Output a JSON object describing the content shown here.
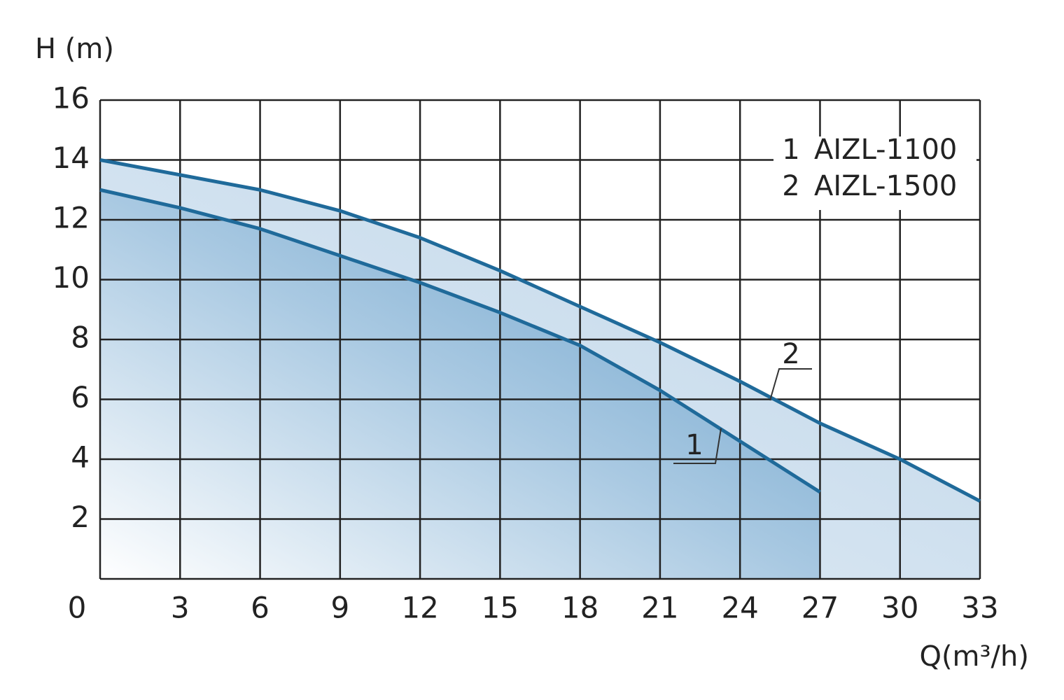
{
  "chart_data": {
    "type": "line",
    "y_label": "H (m)",
    "x_label": "Q(m³/h)",
    "xlim": [
      0,
      33
    ],
    "ylim": [
      0,
      16
    ],
    "xticks": [
      0,
      3,
      6,
      9,
      12,
      15,
      18,
      21,
      24,
      27,
      30,
      33
    ],
    "yticks": [
      2,
      4,
      6,
      8,
      10,
      12,
      14,
      16
    ],
    "grid": true,
    "legend": "upper right",
    "series": [
      {
        "label": "1",
        "name": "AIZL-1100",
        "color": "#1f6a9a",
        "x": [
          0,
          3,
          6,
          9,
          12,
          15,
          18,
          21,
          24,
          27
        ],
        "values": [
          13,
          12.4,
          11.7,
          10.8,
          9.9,
          8.9,
          7.8,
          6.3,
          4.6,
          2.9
        ]
      },
      {
        "label": "2",
        "name": "AIZL-1500",
        "color": "#1f6a9a",
        "x": [
          0,
          3,
          6,
          9,
          12,
          15,
          18,
          21,
          24,
          27,
          30,
          33
        ],
        "values": [
          14,
          13.5,
          13,
          12.3,
          11.4,
          10.3,
          9.1,
          7.9,
          6.6,
          5.2,
          4,
          2.6
        ]
      }
    ]
  }
}
